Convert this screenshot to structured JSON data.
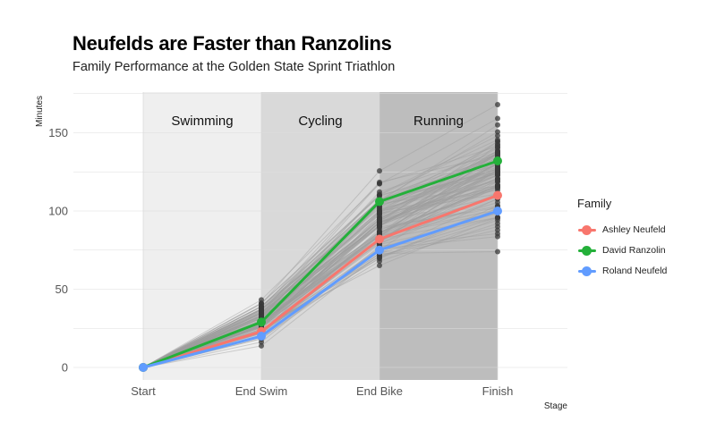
{
  "chart_data": {
    "type": "line",
    "title": "Neufelds are Faster than Ranzolins",
    "subtitle": "Family Performance at the Golden State Sprint Triathlon",
    "xlabel": "Stage",
    "ylabel": "Minutes",
    "categories": [
      "Start",
      "End Swim",
      "End Bike",
      "Finish"
    ],
    "ylim": [
      -8,
      176
    ],
    "yticks": [
      0,
      50,
      100,
      150
    ],
    "grid": true,
    "stage_bands": [
      {
        "label": "Swimming",
        "from": "Start",
        "to": "End Swim",
        "color": "#efefef"
      },
      {
        "label": "Cycling",
        "from": "End Swim",
        "to": "End Bike",
        "color": "#d9d9d9"
      },
      {
        "label": "Running",
        "from": "End Bike",
        "to": "Finish",
        "color": "#bdbdbd"
      }
    ],
    "legend": {
      "title": "Family",
      "position": "right"
    },
    "series": [
      {
        "name": "Ashley Neufeld",
        "color": "#f8766d",
        "values": [
          0,
          23,
          82,
          110
        ]
      },
      {
        "name": "David Ranzolin",
        "color": "#24b03a",
        "values": [
          0,
          29,
          106,
          132
        ]
      },
      {
        "name": "Roland Neufeld",
        "color": "#619cff",
        "values": [
          0,
          20,
          75,
          100
        ]
      }
    ],
    "background_participants": {
      "count": 110,
      "color": "#9e9e9e",
      "end_swim_range": [
        12,
        47
      ],
      "end_bike_range": [
        55,
        127
      ],
      "finish_range": [
        74,
        168
      ]
    }
  }
}
